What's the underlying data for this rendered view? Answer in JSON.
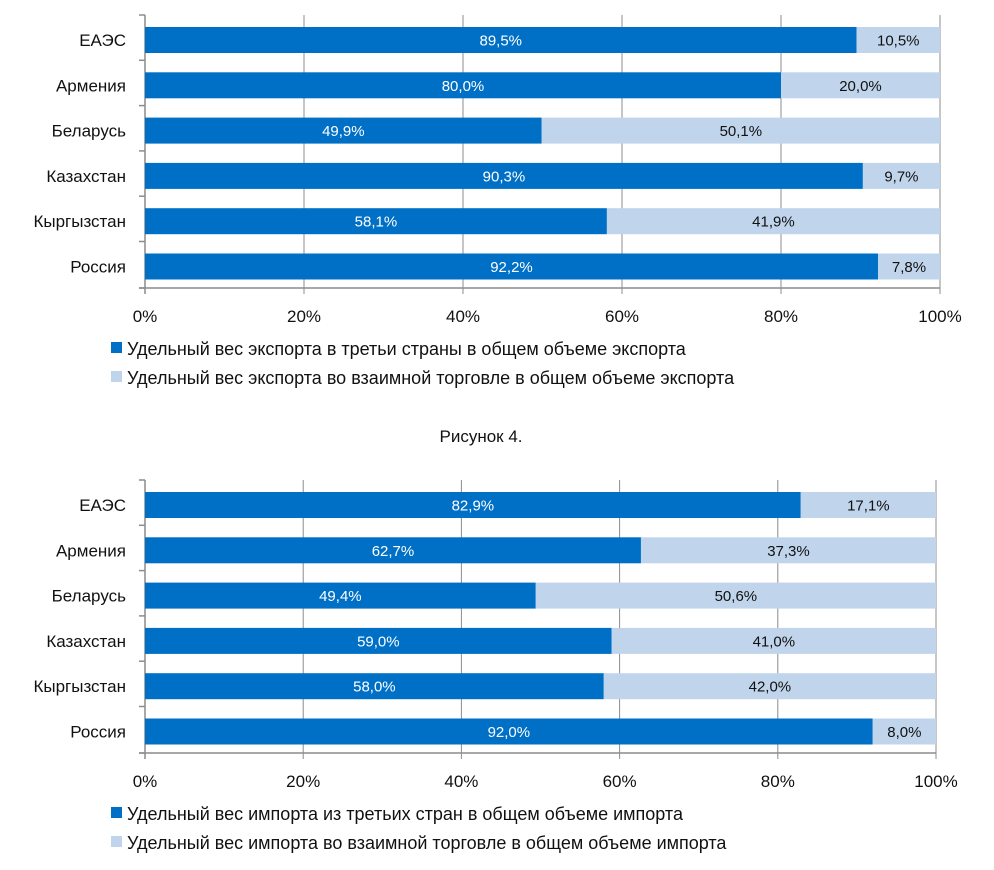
{
  "colors": {
    "primary": "#0070c6",
    "secondary": "#c0d5ec"
  },
  "caption": "Рисунок 4.",
  "chart_data": [
    {
      "type": "bar",
      "orientation": "horizontal",
      "stacked": "percent",
      "categories": [
        "ЕАЭС",
        "Армения",
        "Беларусь",
        "Казахстан",
        "Кыргызстан",
        "Россия"
      ],
      "series": [
        {
          "name": "Удельный вес экспорта в третьи страны в общем объеме экспорта",
          "values": [
            89.5,
            80.0,
            49.9,
            90.3,
            58.1,
            92.2
          ],
          "labels": [
            "89,5%",
            "80,0%",
            "49,9%",
            "90,3%",
            "58,1%",
            "92,2%"
          ]
        },
        {
          "name": "Удельный вес экспорта во взаимной торговле в общем объеме экспорта",
          "values": [
            10.5,
            20.0,
            50.1,
            9.7,
            41.9,
            7.8
          ],
          "labels": [
            "10,5%",
            "20,0%",
            "50,1%",
            "9,7%",
            "41,9%",
            "7,8%"
          ]
        }
      ],
      "xticks": [
        "0%",
        "20%",
        "40%",
        "60%",
        "80%",
        "100%"
      ],
      "xlim": [
        0,
        100
      ],
      "grid": true,
      "legend": "bottom",
      "title": "",
      "xlabel": "",
      "ylabel": ""
    },
    {
      "type": "bar",
      "orientation": "horizontal",
      "stacked": "percent",
      "categories": [
        "ЕАЭС",
        "Армения",
        "Беларусь",
        "Казахстан",
        "Кыргызстан",
        "Россия"
      ],
      "series": [
        {
          "name": "Удельный вес импорта из третьих стран в общем объеме импорта",
          "values": [
            82.9,
            62.7,
            49.4,
            59.0,
            58.0,
            92.0
          ],
          "labels": [
            "82,9%",
            "62,7%",
            "49,4%",
            "59,0%",
            "58,0%",
            "92,0%"
          ]
        },
        {
          "name": "Удельный вес импорта во взаимной торговле в общем объеме импорта",
          "values": [
            17.1,
            37.3,
            50.6,
            41.0,
            42.0,
            8.0
          ],
          "labels": [
            "17,1%",
            "37,3%",
            "50,6%",
            "41,0%",
            "42,0%",
            "8,0%"
          ]
        }
      ],
      "xticks": [
        "0%",
        "20%",
        "40%",
        "60%",
        "80%",
        "100%"
      ],
      "xlim": [
        0,
        100
      ],
      "grid": true,
      "legend": "bottom",
      "title": "",
      "xlabel": "",
      "ylabel": ""
    }
  ]
}
